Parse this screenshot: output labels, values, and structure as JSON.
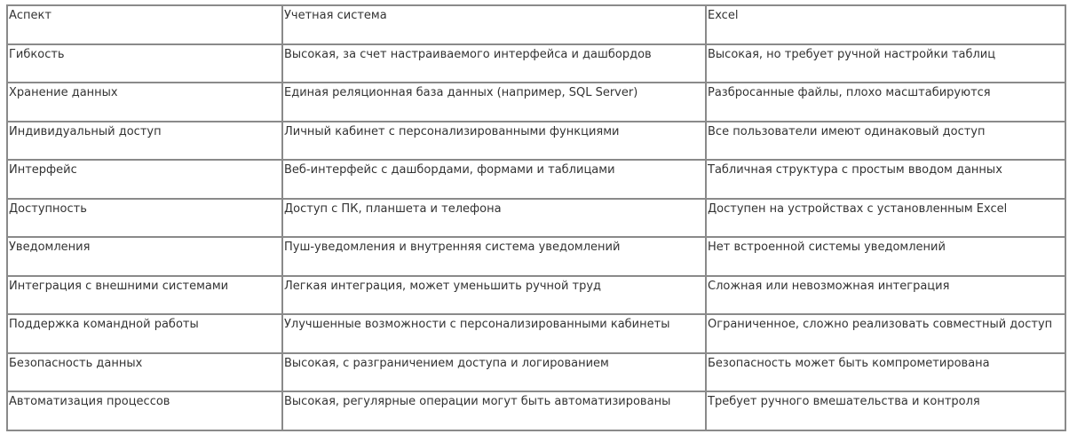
{
  "table": {
    "headers": [
      "Аспект",
      "Учетная система",
      "Excel"
    ],
    "rows": [
      [
        "Гибкость",
        "Высокая, за счет настраиваемого интерфейса и дашбордов",
        "Высокая, но требует ручной настройки таблиц"
      ],
      [
        "Хранение данных",
        "Единая реляционная база данных (например, SQL Server)",
        "Разбросанные файлы, плохо масштабируются"
      ],
      [
        "Индивидуальный доступ",
        "Личный кабинет с персонализированными функциями",
        "Все пользователи имеют одинаковый доступ"
      ],
      [
        "Интерфейс",
        "Веб-интерфейс с дашбордами, формами и таблицами",
        "Табличная структура с простым вводом данных"
      ],
      [
        "Доступность",
        "Доступ с ПК, планшета и телефона",
        "Доступен на устройствах с установленным Excel"
      ],
      [
        "Уведомления",
        "Пуш-уведомления и внутренняя система уведомлений",
        "Нет встроенной системы уведомлений"
      ],
      [
        "Интеграция с внешними системами",
        "Легкая интеграция, может уменьшить ручной труд",
        "Сложная или невозможная интеграция"
      ],
      [
        "Поддержка командной работы",
        "Улучшенные возможности с персонализированными кабинеты",
        "Ограниченное, сложно реализовать совместный доступ"
      ],
      [
        "Безопасность данных",
        "Высокая, с разграничением доступа и логированием",
        "Безопасность может быть компрометирована"
      ],
      [
        "Автоматизация процессов",
        "Высокая, регулярные операции могут быть автоматизированы",
        "Требует ручного вмешательства и контроля"
      ]
    ]
  }
}
